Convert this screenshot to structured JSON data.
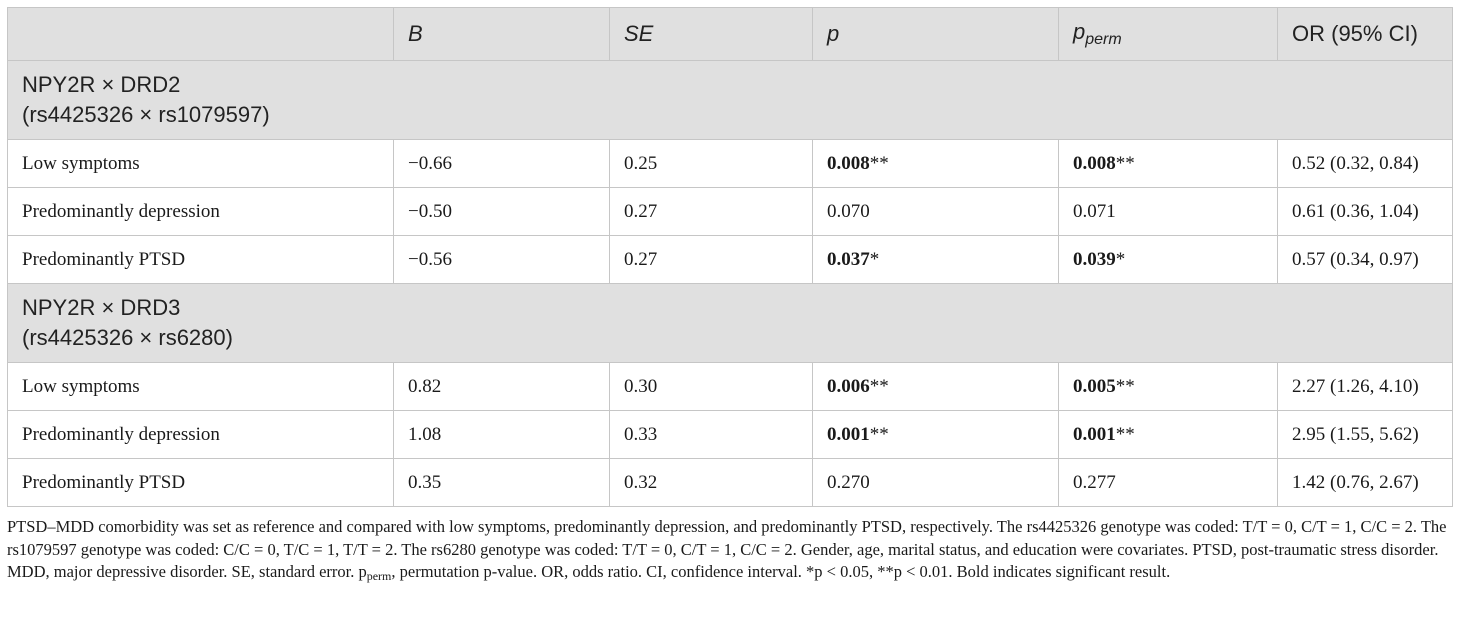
{
  "table": {
    "headers": {
      "col0": "",
      "col1": "B",
      "col2": "SE",
      "col3": "p",
      "col4_main": "p",
      "col4_sub": "perm",
      "col5": "OR (95% CI)"
    },
    "groups": [
      {
        "name": "NPY2R × DRD2",
        "snps": "(rs4425326 × rs1079597)",
        "rows": [
          {
            "label": "Low symptoms",
            "b": "−0.66",
            "se": "0.25",
            "p": "0.008",
            "p_stars": "**",
            "p_bold": true,
            "pperm": "0.008",
            "pperm_stars": "**",
            "pperm_bold": true,
            "or_ci": "0.52 (0.32, 0.84)"
          },
          {
            "label": "Predominantly depression",
            "b": "−0.50",
            "se": "0.27",
            "p": "0.070",
            "p_stars": "",
            "p_bold": false,
            "pperm": "0.071",
            "pperm_stars": "",
            "pperm_bold": false,
            "or_ci": "0.61 (0.36, 1.04)"
          },
          {
            "label": "Predominantly PTSD",
            "b": "−0.56",
            "se": "0.27",
            "p": "0.037",
            "p_stars": "*",
            "p_bold": true,
            "pperm": "0.039",
            "pperm_stars": "*",
            "pperm_bold": true,
            "or_ci": "0.57 (0.34, 0.97)"
          }
        ]
      },
      {
        "name": "NPY2R × DRD3",
        "snps": "(rs4425326 × rs6280)",
        "rows": [
          {
            "label": "Low symptoms",
            "b": "0.82",
            "se": "0.30",
            "p": "0.006",
            "p_stars": "**",
            "p_bold": true,
            "pperm": "0.005",
            "pperm_stars": "**",
            "pperm_bold": true,
            "or_ci": "2.27 (1.26, 4.10)"
          },
          {
            "label": "Predominantly depression",
            "b": "1.08",
            "se": "0.33",
            "p": "0.001",
            "p_stars": "**",
            "p_bold": true,
            "pperm": "0.001",
            "pperm_stars": "**",
            "pperm_bold": true,
            "or_ci": "2.95 (1.55, 5.62)"
          },
          {
            "label": "Predominantly PTSD",
            "b": "0.35",
            "se": "0.32",
            "p": "0.270",
            "p_stars": "",
            "p_bold": false,
            "pperm": "0.277",
            "pperm_stars": "",
            "pperm_bold": false,
            "or_ci": "1.42 (0.76, 2.67)"
          }
        ]
      }
    ]
  },
  "footnote": {
    "part1": "PTSD–MDD comorbidity was set as reference and compared with low symptoms, predominantly depression, and predominantly PTSD, respectively. The rs4425326 genotype was coded: T/T = 0, C/T = 1, C/C = 2. The rs1079597 genotype was coded: C/C = 0, T/C = 1, T/T = 2. The rs6280 genotype was coded: T/T = 0, C/T = 1, C/C = 2. Gender, age, marital status, and education were covariates. PTSD, post-traumatic stress disorder. MDD, major depressive disorder. SE, standard error. p",
    "sub": "perm",
    "part2": ", permutation p-value. OR, odds ratio. CI, confidence interval. *p < 0.05, **p < 0.01. Bold indicates significant result."
  }
}
